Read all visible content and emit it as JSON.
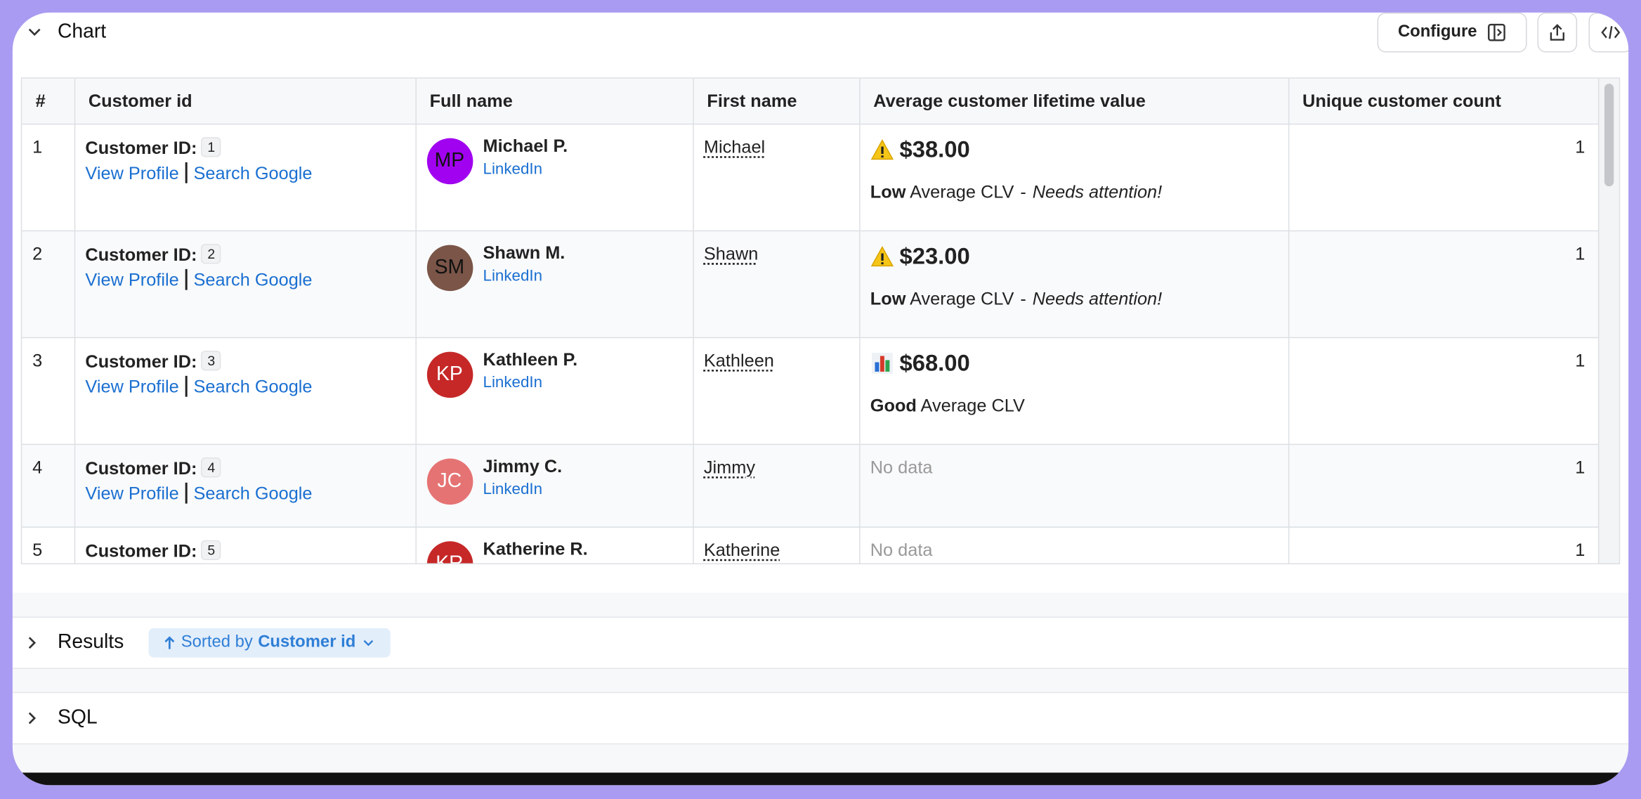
{
  "header": {
    "title": "Chart",
    "configure": "Configure"
  },
  "table": {
    "columns": [
      "#",
      "Customer id",
      "Full name",
      "First name",
      "Average customer lifetime value",
      "Unique customer count"
    ],
    "rows": [
      {
        "index": 1,
        "id_label": "Customer ID:",
        "id": 1,
        "links": [
          "View Profile",
          "Search Google"
        ],
        "initials": "MP",
        "avatar_color": "#a103f0",
        "name": "Michael P.",
        "social": "LinkedIn",
        "first_name": "Michael",
        "clv": {
          "icon": "warning",
          "value": "$38.00",
          "level": "Low",
          "label": "Average CLV",
          "separator": "-",
          "note": "Needs attention!"
        },
        "count": 1
      },
      {
        "index": 2,
        "id_label": "Customer ID:",
        "id": 2,
        "links": [
          "View Profile",
          "Search Google"
        ],
        "initials": "SM",
        "avatar_color": "#7a5548",
        "name": "Shawn M.",
        "social": "LinkedIn",
        "first_name": "Shawn",
        "clv": {
          "icon": "warning",
          "value": "$23.00",
          "level": "Low",
          "label": "Average CLV",
          "separator": "-",
          "note": "Needs attention!"
        },
        "count": 1
      },
      {
        "index": 3,
        "id_label": "Customer ID:",
        "id": 3,
        "links": [
          "View Profile",
          "Search Google"
        ],
        "initials": "KP",
        "avatar_color": "#c62828",
        "name": "Kathleen P.",
        "social": "LinkedIn",
        "first_name": "Kathleen",
        "clv": {
          "icon": "chart",
          "value": "$68.00",
          "level": "Good",
          "label": "Average CLV"
        },
        "count": 1
      },
      {
        "index": 4,
        "id_label": "Customer ID:",
        "id": 4,
        "links": [
          "View Profile",
          "Search Google"
        ],
        "initials": "JC",
        "avatar_color": "#e57373",
        "name": "Jimmy C.",
        "social": "LinkedIn",
        "first_name": "Jimmy",
        "clv": {
          "empty": "No data"
        },
        "count": 1
      },
      {
        "index": 5,
        "id_label": "Customer ID:",
        "id": 5,
        "initials": "KR",
        "avatar_color": "#c62828",
        "name": "Katherine R.",
        "first_name": "Katherine",
        "clv": {
          "empty": "No data"
        },
        "count": 1
      }
    ]
  },
  "results": {
    "title": "Results",
    "sort_prefix": "Sorted by",
    "sort_field": "Customer id"
  },
  "sql": {
    "title": "SQL"
  }
}
